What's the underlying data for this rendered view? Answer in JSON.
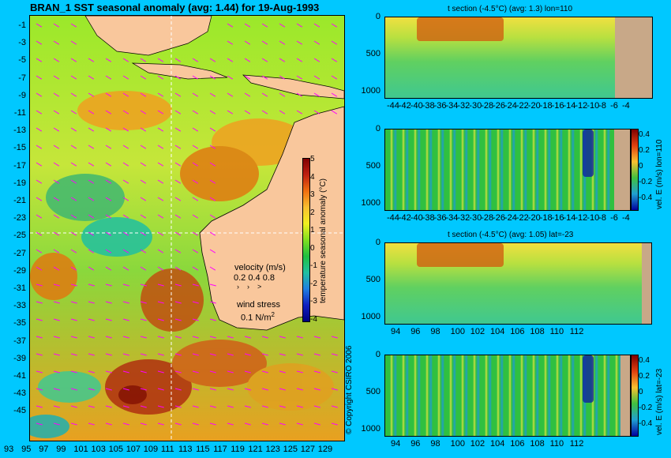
{
  "map": {
    "title": "BRAN_1  SST seasonal anomaly  (avg: 1.44) for 19-Aug-1993",
    "lat_labels": [
      "-1",
      "-3",
      "-5",
      "-7",
      "-9",
      "-11",
      "-13",
      "-15",
      "-17",
      "-19",
      "-21",
      "-23",
      "-25",
      "-27",
      "-29",
      "-31",
      "-33",
      "-35",
      "-37",
      "-39",
      "-41",
      "-43",
      "-45"
    ],
    "lon_labels": [
      "93",
      "95",
      "97",
      "99",
      "101",
      "103",
      "105",
      "107",
      "109",
      "111",
      "113",
      "115",
      "117",
      "119",
      "121",
      "123",
      "125",
      "127",
      "129"
    ],
    "colorbar": {
      "label": "temperature seasonal anomaly (°C)",
      "ticks": [
        "5",
        "4",
        "3",
        "2",
        "1",
        "0",
        "-1",
        "-2",
        "-3",
        "-4"
      ]
    },
    "legend": {
      "velocity_label": "velocity (m/s)",
      "velocity_values": "0.2 0.4 0.8",
      "wind_label": "wind stress",
      "wind_value": "0.1 N/m",
      "wind_sup": "2"
    },
    "copyright": "© Copyright CSIRO 2006"
  },
  "panels": [
    {
      "title": "t section (-4.5°C) (avg: 1.3) lon=110",
      "y_ticks": [
        "0",
        "500",
        "1000"
      ],
      "x_ticks": [
        "-44",
        "-42",
        "-40",
        "-38",
        "-36",
        "-34",
        "-32",
        "-30",
        "-28",
        "-26",
        "-24",
        "-22",
        "-20",
        "-18",
        "-16",
        "-14",
        "-12",
        "-10",
        "-8",
        "-6",
        "-4"
      ]
    },
    {
      "title": "",
      "y_ticks": [
        "0",
        "500",
        "1000"
      ],
      "x_ticks": [
        "-44",
        "-42",
        "-40",
        "-38",
        "-36",
        "-34",
        "-32",
        "-30",
        "-28",
        "-26",
        "-24",
        "-22",
        "-20",
        "-18",
        "-16",
        "-14",
        "-12",
        "-10",
        "-8",
        "-6",
        "-4"
      ],
      "colorbar_label": "vel. E (m/s) lon=110",
      "colorbar_ticks": [
        "0.4",
        "0.2",
        "0",
        "-0.2",
        "-0.4"
      ]
    },
    {
      "title": "t section (-4.5°C) (avg: 1.05) lat=-23",
      "y_ticks": [
        "0",
        "500",
        "1000"
      ],
      "x_ticks": [
        "94",
        "96",
        "98",
        "100",
        "102",
        "104",
        "106",
        "108",
        "110",
        "112"
      ]
    },
    {
      "title": "",
      "y_ticks": [
        "0",
        "500",
        "1000"
      ],
      "x_ticks": [
        "94",
        "96",
        "98",
        "100",
        "102",
        "104",
        "106",
        "108",
        "110",
        "112"
      ],
      "colorbar_label": "vel. E (m/s) lat=-23",
      "colorbar_ticks": [
        "0.4",
        "0.2",
        "0",
        "-0.2",
        "-0.4"
      ]
    }
  ],
  "colors": {
    "background": "#00c8ff",
    "land": "#f9c79c",
    "section_land": "#c8a888",
    "anomaly_low": "#0000a0",
    "anomaly_mid": "#20c020",
    "anomaly_high": "#800000",
    "vectors": "#ff00ff"
  }
}
